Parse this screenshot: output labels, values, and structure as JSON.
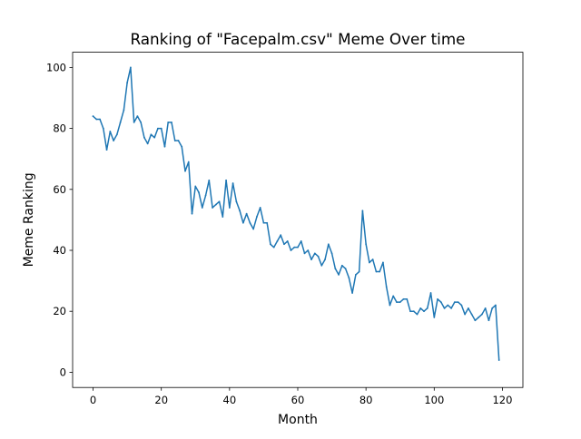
{
  "chart_data": {
    "type": "line",
    "title": "Ranking of \"Facepalm.csv\" Meme Over time",
    "xlabel": "Month",
    "ylabel": "Meme Ranking",
    "xlim": [
      -6,
      126
    ],
    "ylim": [
      -5,
      105
    ],
    "xticks": [
      0,
      20,
      40,
      60,
      80,
      100,
      120
    ],
    "yticks": [
      0,
      20,
      40,
      60,
      80,
      100
    ],
    "grid": false,
    "series": [
      {
        "color": "#1f77b4",
        "x": [
          0,
          1,
          2,
          3,
          4,
          5,
          6,
          7,
          8,
          9,
          10,
          11,
          12,
          13,
          14,
          15,
          16,
          17,
          18,
          19,
          20,
          21,
          22,
          23,
          24,
          25,
          26,
          27,
          28,
          29,
          30,
          31,
          32,
          33,
          34,
          35,
          36,
          37,
          38,
          39,
          40,
          41,
          42,
          43,
          44,
          45,
          46,
          47,
          48,
          49,
          50,
          51,
          52,
          53,
          54,
          55,
          56,
          57,
          58,
          59,
          60,
          61,
          62,
          63,
          64,
          65,
          66,
          67,
          68,
          69,
          70,
          71,
          72,
          73,
          74,
          75,
          76,
          77,
          78,
          79,
          80,
          81,
          82,
          83,
          84,
          85,
          86,
          87,
          88,
          89,
          90,
          91,
          92,
          93,
          94,
          95,
          96,
          97,
          98,
          99,
          100,
          101,
          102,
          103,
          104,
          105,
          106,
          107,
          108,
          109,
          110,
          111,
          112,
          113,
          114,
          115,
          116,
          117,
          118,
          119
        ],
        "values": [
          84,
          83,
          83,
          80,
          73,
          79,
          76,
          78,
          82,
          86,
          95,
          100,
          82,
          84,
          82,
          77,
          75,
          78,
          77,
          80,
          80,
          74,
          82,
          82,
          76,
          76,
          74,
          66,
          69,
          52,
          61,
          59,
          54,
          58,
          63,
          54,
          55,
          56,
          51,
          63,
          54,
          62,
          56,
          53,
          49,
          52,
          49,
          47,
          51,
          54,
          49,
          49,
          42,
          41,
          43,
          45,
          42,
          43,
          40,
          41,
          41,
          43,
          39,
          40,
          37,
          39,
          38,
          35,
          37,
          42,
          39,
          34,
          32,
          35,
          34,
          31,
          26,
          32,
          33,
          53,
          42,
          36,
          37,
          33,
          33,
          36,
          28,
          22,
          25,
          23,
          23,
          24,
          24,
          20,
          20,
          19,
          21,
          20,
          21,
          26,
          18,
          24,
          23,
          21,
          22,
          21,
          23,
          23,
          22,
          19,
          21,
          19,
          17,
          18,
          19,
          21,
          17,
          21,
          22,
          4
        ]
      }
    ]
  }
}
